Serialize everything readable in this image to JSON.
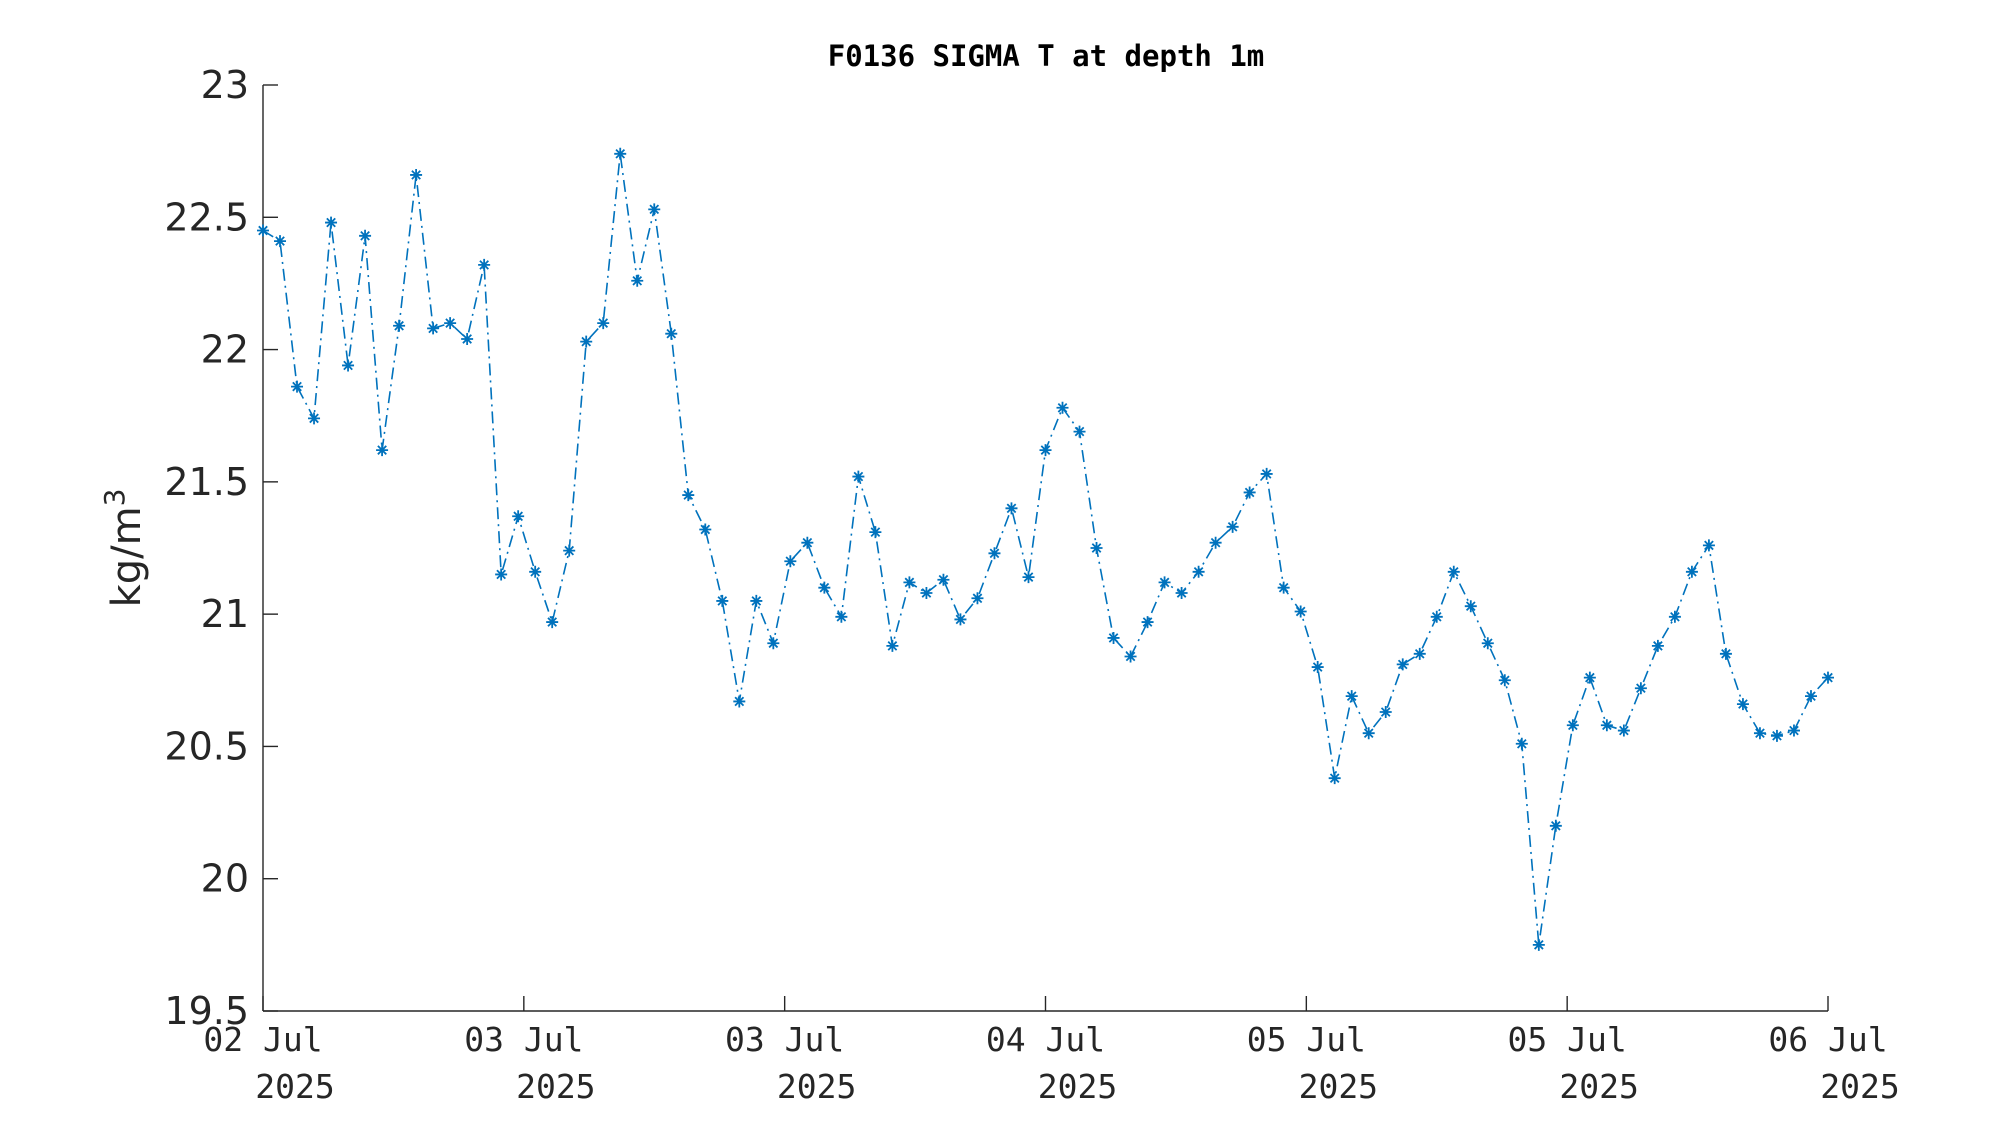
{
  "chart_data": {
    "type": "line",
    "title": "F0136 SIGMA T at depth 1m",
    "xlabel": "",
    "ylabel": "kg/m",
    "ylabel_superscript": "3",
    "ylim": [
      19.5,
      23
    ],
    "yticks": [
      "19.5",
      "20",
      "20.5",
      "21",
      "21.5",
      "22",
      "22.5",
      "23"
    ],
    "xticks": [
      {
        "line1": "02 Jul",
        "line2": "2025"
      },
      {
        "line1": "03 Jul",
        "line2": "2025"
      },
      {
        "line1": "03 Jul",
        "line2": "2025"
      },
      {
        "line1": "04 Jul",
        "line2": "2025"
      },
      {
        "line1": "05 Jul",
        "line2": "2025"
      },
      {
        "line1": "05 Jul",
        "line2": "2025"
      },
      {
        "line1": "06 Jul",
        "line2": "2025"
      }
    ],
    "grid": false,
    "line_style": "dash-dot",
    "marker": "asterisk",
    "series_color": "#0072BD",
    "series": [
      {
        "values": [
          22.45,
          22.41,
          21.86,
          21.74,
          22.48,
          21.94,
          22.43,
          21.62,
          22.09,
          22.66,
          22.08,
          22.1,
          22.04,
          22.32,
          21.15,
          21.37,
          21.16,
          20.97,
          21.24,
          22.03,
          22.1,
          22.74,
          22.26,
          22.53,
          22.06,
          21.45,
          21.32,
          21.05,
          20.67,
          21.05,
          20.89,
          21.2,
          21.27,
          21.1,
          20.99,
          21.52,
          21.31,
          20.88,
          21.12,
          21.08,
          21.13,
          20.98,
          21.06,
          21.23,
          21.4,
          21.14,
          21.62,
          21.78,
          21.69,
          21.25,
          20.91,
          20.84,
          20.97,
          21.12,
          21.08,
          21.16,
          21.27,
          21.33,
          21.46,
          21.53,
          21.1,
          21.01,
          20.8,
          20.38,
          20.69,
          20.55,
          20.63,
          20.81,
          20.85,
          20.99,
          21.16,
          21.03,
          20.89,
          20.75,
          20.51,
          19.75,
          20.2,
          20.58,
          20.76,
          20.58,
          20.56,
          20.72,
          20.88,
          20.99,
          21.16,
          21.26,
          20.85,
          20.66,
          20.55,
          20.54,
          20.56,
          20.69,
          20.76
        ]
      }
    ]
  }
}
